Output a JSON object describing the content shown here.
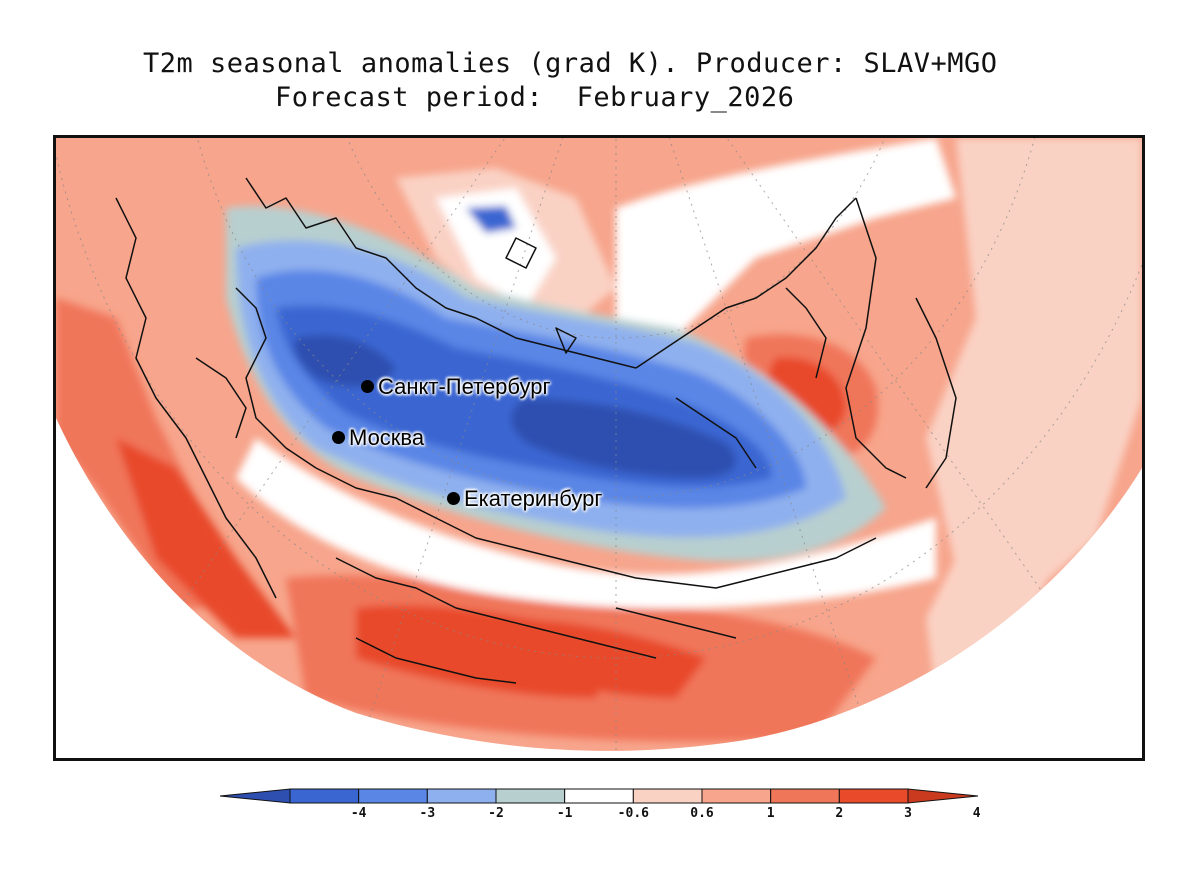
{
  "title": {
    "line1": "T2m seasonal anomalies (grad K). Producer: SLAV+MGO",
    "line2": "Forecast period:  February_2026"
  },
  "cities": [
    {
      "name": "Санкт-Петербург"
    },
    {
      "name": "Москва"
    },
    {
      "name": "Екатеринбург"
    }
  ],
  "colorbar": {
    "ticks": [
      "-4",
      "-3",
      "-2",
      "-1",
      "-0.6",
      "0.6",
      "1",
      "2",
      "3",
      "4"
    ],
    "colors": {
      "below_-4": "#2f4fb0",
      "-4_-3": "#3a66d2",
      "-3_-2": "#5a86e6",
      "-2_-1": "#8fb0ee",
      "-1_-0.6": "#b8cfcf",
      "-0.6_0.6": "#ffffff",
      "0.6_1": "#fad2c4",
      "1_2": "#f7a58c",
      "2_3": "#f0765a",
      "3_4": "#e84a2a",
      "above_4": "#c93a1f"
    }
  }
}
